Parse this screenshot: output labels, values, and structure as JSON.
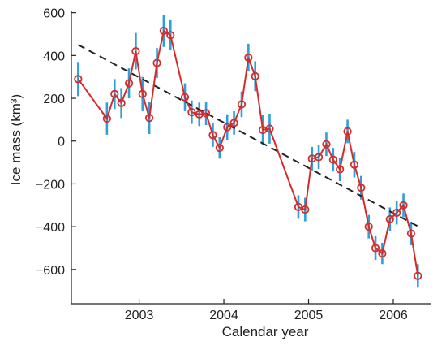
{
  "chart_data": {
    "type": "line",
    "xlabel": "Calendar year",
    "ylabel": "Ice mass (km³)",
    "xlim": [
      2002.2,
      2006.45
    ],
    "ylim": [
      -760,
      610
    ],
    "x_ticks": [
      2003,
      2004,
      2005,
      2006
    ],
    "x_tick_labels": [
      "2003",
      "2004",
      "2005",
      "2006"
    ],
    "y_ticks": [
      600,
      400,
      200,
      0,
      -200,
      -400,
      -600
    ],
    "y_tick_labels": [
      "600",
      "400",
      "200",
      "0",
      "−200",
      "−400",
      "−600"
    ],
    "grid": false,
    "legend": "none",
    "series": [
      {
        "kind": "measurements",
        "color": "#d62b2b",
        "errorbar_color": "#2e9fd8",
        "points": [
          {
            "x": 2002.28,
            "y": 290,
            "err": 80
          },
          {
            "x": 2002.62,
            "y": 105,
            "err": 75
          },
          {
            "x": 2002.71,
            "y": 220,
            "err": 70
          },
          {
            "x": 2002.79,
            "y": 178,
            "err": 70
          },
          {
            "x": 2002.88,
            "y": 270,
            "err": 70
          },
          {
            "x": 2002.96,
            "y": 420,
            "err": 85
          },
          {
            "x": 2003.04,
            "y": 220,
            "err": 80
          },
          {
            "x": 2003.12,
            "y": 108,
            "err": 75
          },
          {
            "x": 2003.21,
            "y": 365,
            "err": 70
          },
          {
            "x": 2003.29,
            "y": 515,
            "err": 75
          },
          {
            "x": 2003.37,
            "y": 495,
            "err": 70
          },
          {
            "x": 2003.54,
            "y": 205,
            "err": 65
          },
          {
            "x": 2003.62,
            "y": 135,
            "err": 55
          },
          {
            "x": 2003.71,
            "y": 125,
            "err": 55
          },
          {
            "x": 2003.79,
            "y": 130,
            "err": 55
          },
          {
            "x": 2003.87,
            "y": 28,
            "err": 55
          },
          {
            "x": 2003.95,
            "y": -32,
            "err": 50
          },
          {
            "x": 2004.04,
            "y": 65,
            "err": 60
          },
          {
            "x": 2004.12,
            "y": 85,
            "err": 55
          },
          {
            "x": 2004.21,
            "y": 172,
            "err": 60
          },
          {
            "x": 2004.29,
            "y": 390,
            "err": 65
          },
          {
            "x": 2004.37,
            "y": 303,
            "err": 70
          },
          {
            "x": 2004.46,
            "y": 52,
            "err": 70
          },
          {
            "x": 2004.54,
            "y": 58,
            "err": 70
          },
          {
            "x": 2004.88,
            "y": -308,
            "err": 55
          },
          {
            "x": 2004.96,
            "y": -320,
            "err": 55
          },
          {
            "x": 2005.04,
            "y": -82,
            "err": 55
          },
          {
            "x": 2005.12,
            "y": -75,
            "err": 55
          },
          {
            "x": 2005.21,
            "y": -15,
            "err": 55
          },
          {
            "x": 2005.29,
            "y": -87,
            "err": 55
          },
          {
            "x": 2005.37,
            "y": -132,
            "err": 55
          },
          {
            "x": 2005.46,
            "y": 45,
            "err": 55
          },
          {
            "x": 2005.54,
            "y": -110,
            "err": 60
          },
          {
            "x": 2005.62,
            "y": -218,
            "err": 55
          },
          {
            "x": 2005.71,
            "y": -400,
            "err": 55
          },
          {
            "x": 2005.79,
            "y": -500,
            "err": 55
          },
          {
            "x": 2005.87,
            "y": -525,
            "err": 50
          },
          {
            "x": 2005.96,
            "y": -365,
            "err": 55
          },
          {
            "x": 2006.04,
            "y": -335,
            "err": 55
          },
          {
            "x": 2006.12,
            "y": -300,
            "err": 55
          },
          {
            "x": 2006.21,
            "y": -432,
            "err": 55
          },
          {
            "x": 2006.29,
            "y": -630,
            "err": 55
          }
        ]
      },
      {
        "kind": "trend",
        "style": "dashed",
        "color": "#222222",
        "x": [
          2002.28,
          2006.29
        ],
        "y": [
          450,
          -398
        ]
      }
    ]
  }
}
